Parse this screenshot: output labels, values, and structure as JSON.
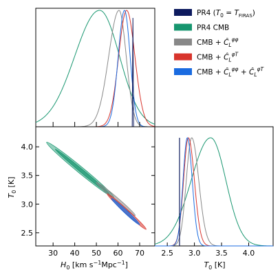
{
  "chart_data": {
    "type": "triangle_corner",
    "series": [
      {
        "key": "pr4_firas",
        "name": "PR4 (T₀ = T_FIRAS)",
        "color": "#0d1a5e",
        "h0_mean": 66.9,
        "h0_sigma": 0.25,
        "t0_fixed": 2.7255
      },
      {
        "key": "pr4_cmb",
        "name": "PR4 CMB",
        "color": "#17966f",
        "h0_mean": 51.5,
        "h0_sigma": 10.5,
        "t0_mean": 3.3,
        "t0_sigma": 0.38
      },
      {
        "key": "cmb_pp",
        "name": "CMB + Ĉ_L^{φφ}",
        "color": "#888888",
        "h0_mean": 60.5,
        "h0_sigma": 4.3,
        "t0_mean": 2.95,
        "t0_sigma": 0.11
      },
      {
        "key": "cmb_pt",
        "name": "CMB + Ĉ_L^{φT}",
        "color": "#d8342c",
        "h0_mean": 64.0,
        "h0_sigma": 3.8,
        "t0_mean": 2.89,
        "t0_sigma": 0.1
      },
      {
        "key": "cmb_both",
        "name": "CMB + Ĉ_L^{φφ} + Ĉ_L^{φT}",
        "color": "#1a6be0",
        "h0_mean": 63.0,
        "h0_sigma": 2.8,
        "t0_mean": 2.87,
        "t0_sigma": 0.085
      }
    ],
    "legend_items": [
      {
        "base": "PR4 (",
        "sym": "T",
        "sub": "0",
        "mid": " = ",
        "sym2": "T",
        "sub2": "FIRAS",
        "tail": ")"
      },
      {
        "base": "PR4 CMB"
      },
      {
        "base": " CMB + ",
        "cl": "φφ"
      },
      {
        "base": " CMB + ",
        "cl": "φT"
      },
      {
        "base": " CMB + ",
        "cl": "φφ",
        "base2": " + ",
        "cl2": "φT"
      }
    ],
    "x_h0": {
      "label": "H₀ [km s⁻¹Mpc⁻¹]",
      "ticks": [
        30,
        40,
        50,
        60,
        70
      ],
      "range": [
        22,
        77
      ]
    },
    "y_t0": {
      "label": "T₀ [K]",
      "ticks": [
        2.5,
        3.0,
        3.5,
        4.0
      ],
      "range": [
        2.27,
        4.35
      ]
    },
    "x_t0": {
      "label": "T₀ [K]",
      "ticks": [
        2.5,
        3.0,
        3.5,
        4.0
      ],
      "range": [
        2.27,
        4.45
      ]
    },
    "legend_placement": "top-right"
  }
}
